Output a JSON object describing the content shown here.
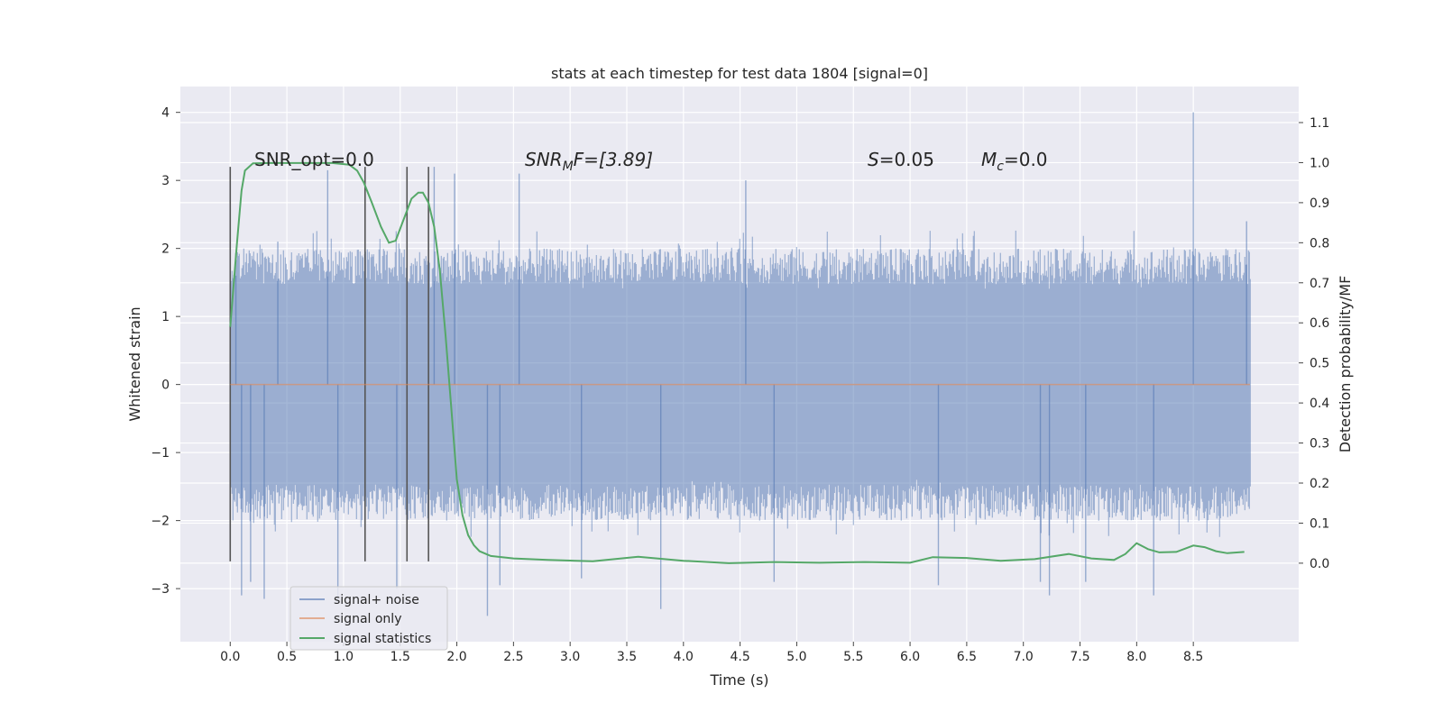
{
  "chart_data": {
    "type": "line",
    "title": "stats at each timestep for test data 1804 [signal=0]",
    "xlabel": "Time (s)",
    "ylabel": "Whitened strain",
    "y2label": "Detection probability/MF",
    "xlim": [
      -0.44,
      9.43
    ],
    "ylim": [
      -3.78,
      4.38
    ],
    "y2lim": [
      -0.196,
      1.19
    ],
    "xticks": [
      "0.0",
      "0.5",
      "1.0",
      "1.5",
      "2.0",
      "2.5",
      "3.0",
      "3.5",
      "4.0",
      "4.5",
      "5.0",
      "5.5",
      "6.0",
      "6.5",
      "7.0",
      "7.5",
      "8.0",
      "8.5"
    ],
    "yticks": [
      "4",
      "3",
      "2",
      "1",
      "0",
      "−1",
      "−2",
      "−3"
    ],
    "y2ticks": [
      "1.1",
      "1.0",
      "0.9",
      "0.8",
      "0.7",
      "0.6",
      "0.5",
      "0.4",
      "0.3",
      "0.2",
      "0.1",
      "0.0"
    ],
    "grid": true,
    "legend_position": "lower-left",
    "background": "#eaeaf2",
    "colors": {
      "signal_noise": "#4c72b0",
      "signal_only": "#dd8452",
      "signal_stats": "#55a868",
      "markers": "#555555"
    },
    "annotations": {
      "snr_opt": "SNR_opt=0.0",
      "snr_mf_main": "SNR",
      "snr_mf_sub": "M",
      "snr_mf_rest": "F=[3.89]",
      "s_main": "S",
      "s_rest": "=0.05",
      "mc_main": "M",
      "mc_sub": "c",
      "mc_rest": "=0.0"
    },
    "vertical_markers_x": [
      0.0,
      1.19,
      1.56,
      1.75
    ],
    "series": [
      {
        "name": "signal+ noise",
        "axis": "left",
        "style": "noise",
        "x_range": [
          0.0,
          9.0
        ],
        "core_amplitude": 1.4,
        "peaks": [
          {
            "x": 0.05,
            "y": 1.6
          },
          {
            "x": 0.1,
            "y": -3.1
          },
          {
            "x": 0.18,
            "y": -2.9
          },
          {
            "x": 0.3,
            "y": -3.15
          },
          {
            "x": 0.42,
            "y": 2.1
          },
          {
            "x": 0.86,
            "y": 3.15
          },
          {
            "x": 0.95,
            "y": -3.2
          },
          {
            "x": 1.47,
            "y": -3.0
          },
          {
            "x": 1.8,
            "y": 3.2
          },
          {
            "x": 1.98,
            "y": 3.1
          },
          {
            "x": 2.27,
            "y": -3.4
          },
          {
            "x": 2.38,
            "y": -2.95
          },
          {
            "x": 2.55,
            "y": 3.1
          },
          {
            "x": 3.1,
            "y": -2.85
          },
          {
            "x": 3.8,
            "y": -3.3
          },
          {
            "x": 4.55,
            "y": 3.0
          },
          {
            "x": 4.8,
            "y": -2.9
          },
          {
            "x": 6.25,
            "y": -2.95
          },
          {
            "x": 7.15,
            "y": -2.9
          },
          {
            "x": 7.23,
            "y": -3.1
          },
          {
            "x": 7.55,
            "y": -2.9
          },
          {
            "x": 8.15,
            "y": -3.1
          },
          {
            "x": 8.5,
            "y": 4.0
          },
          {
            "x": 8.97,
            "y": 2.4
          }
        ]
      },
      {
        "name": "signal only",
        "axis": "left",
        "x": [
          0.0,
          9.0
        ],
        "y": [
          0.0,
          0.0
        ]
      },
      {
        "name": "signal statistics",
        "axis": "right",
        "x": [
          0.0,
          0.06,
          0.1,
          0.13,
          0.2,
          0.35,
          0.6,
          0.9,
          1.05,
          1.12,
          1.18,
          1.25,
          1.33,
          1.4,
          1.46,
          1.52,
          1.6,
          1.66,
          1.7,
          1.75,
          1.8,
          1.85,
          1.9,
          1.95,
          2.0,
          2.05,
          2.1,
          2.15,
          2.2,
          2.3,
          2.5,
          2.8,
          3.2,
          3.6,
          4.0,
          4.4,
          4.8,
          5.2,
          5.6,
          6.0,
          6.2,
          6.5,
          6.8,
          7.1,
          7.4,
          7.6,
          7.8,
          7.9,
          8.0,
          8.1,
          8.2,
          8.35,
          8.5,
          8.6,
          8.7,
          8.8,
          8.95
        ],
        "y": [
          0.59,
          0.8,
          0.93,
          0.98,
          0.998,
          0.999,
          0.999,
          0.999,
          0.995,
          0.98,
          0.95,
          0.9,
          0.84,
          0.8,
          0.805,
          0.85,
          0.91,
          0.925,
          0.925,
          0.9,
          0.84,
          0.73,
          0.57,
          0.39,
          0.21,
          0.12,
          0.07,
          0.045,
          0.03,
          0.018,
          0.012,
          0.008,
          0.005,
          0.016,
          0.006,
          0.0,
          0.003,
          0.001,
          0.003,
          0.001,
          0.015,
          0.013,
          0.006,
          0.01,
          0.023,
          0.012,
          0.008,
          0.023,
          0.05,
          0.035,
          0.027,
          0.028,
          0.044,
          0.04,
          0.03,
          0.025,
          0.028
        ]
      }
    ]
  }
}
